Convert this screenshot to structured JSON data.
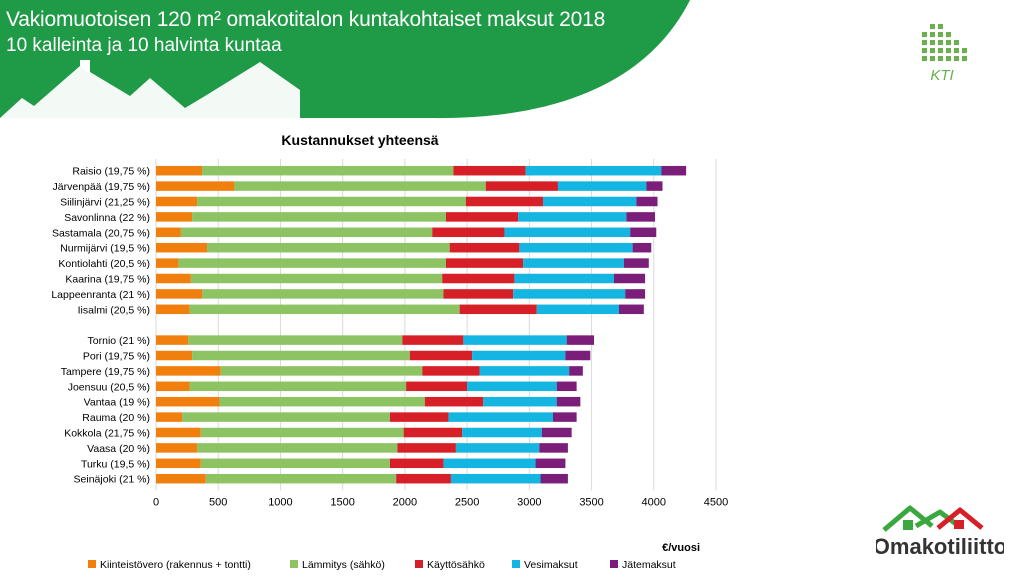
{
  "header": {
    "title": "Vakiomuotoisen 120 m² omakotitalon kuntakohtaiset maksut 2018",
    "subtitle": "10 kalleinta ja 10 halvinta kuntaa"
  },
  "logos": {
    "kti_text": "KTI",
    "omakotiliitto_text": "Omakotiliitto"
  },
  "colors": {
    "banner": "#1f9a47",
    "kiinteistovero": "#f07f0e",
    "lammitys": "#8dc363",
    "kayttosahko": "#d71f27",
    "vesimaksut": "#14b5e0",
    "jatemaksut": "#7a1e7a"
  },
  "chart_data": {
    "type": "bar",
    "orientation": "horizontal",
    "stacked": true,
    "title": "Kustannukset yhteensä",
    "xlabel": "€/vuosi",
    "xlim": [
      0,
      4500
    ],
    "xticks": [
      0,
      500,
      1000,
      1500,
      2000,
      2500,
      3000,
      3500,
      4000,
      4500
    ],
    "grid": true,
    "legend_position": "bottom",
    "categories": [
      "Raisio (19,75 %)",
      "Järvenpää (19,75 %)",
      "Siilinjärvi (21,25 %)",
      "Savonlinna (22 %)",
      "Sastamala (20,75 %)",
      "Nurmijärvi (19,5 %)",
      "Kontiolahti (20,5 %)",
      "Kaarina (19,75 %)",
      "Lappeenranta (21 %)",
      "Iisalmi (20,5 %)",
      "",
      "Tornio (21 %)",
      "Pori (19,75 %)",
      "Tampere (19,75 %)",
      "Joensuu (20,5 %)",
      "Vantaa (19 %)",
      "Rauma (20 %)",
      "Kokkola (21,75 %)",
      "Vaasa (20 %)",
      "Turku (19,5 %)",
      "Seinäjoki (21 %)"
    ],
    "series": [
      {
        "name": "Kiinteistövero (rakennus + tontti)",
        "color": "#f07f0e",
        "values": [
          370,
          630,
          330,
          290,
          200,
          410,
          180,
          280,
          370,
          270,
          null,
          260,
          290,
          520,
          270,
          510,
          210,
          360,
          330,
          360,
          400
        ]
      },
      {
        "name": "Lämmitys (sähkö)",
        "color": "#8dc363",
        "values": [
          2020,
          2020,
          2160,
          2040,
          2020,
          1950,
          2150,
          2020,
          1940,
          2170,
          null,
          1720,
          1750,
          1620,
          1740,
          1650,
          1670,
          1630,
          1610,
          1520,
          1530
        ]
      },
      {
        "name": "Käyttösähkö",
        "color": "#d71f27",
        "values": [
          580,
          580,
          620,
          580,
          580,
          560,
          620,
          580,
          560,
          620,
          null,
          490,
          500,
          460,
          490,
          470,
          470,
          470,
          470,
          430,
          440
        ]
      },
      {
        "name": "Vesimaksut",
        "color": "#14b5e0",
        "values": [
          1090,
          710,
          750,
          870,
          1010,
          910,
          810,
          800,
          900,
          660,
          null,
          830,
          750,
          720,
          720,
          590,
          840,
          640,
          670,
          740,
          720
        ]
      },
      {
        "name": "Jätemaksut",
        "color": "#7a1e7a",
        "values": [
          200,
          130,
          170,
          230,
          210,
          150,
          200,
          250,
          160,
          200,
          null,
          220,
          200,
          110,
          160,
          190,
          190,
          240,
          230,
          240,
          220
        ]
      }
    ]
  }
}
